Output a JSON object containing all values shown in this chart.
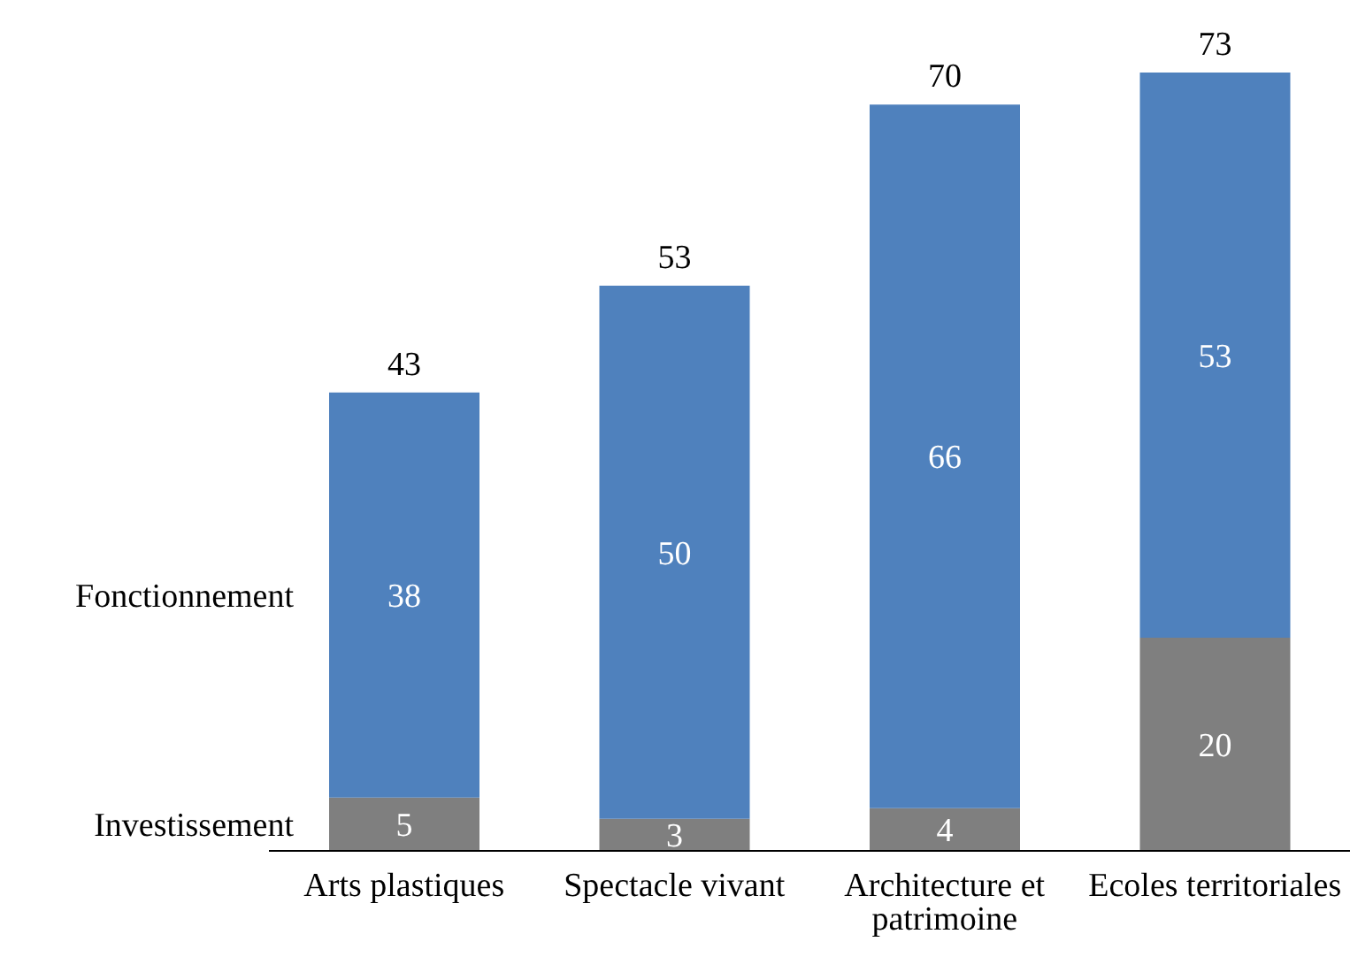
{
  "chart_data": {
    "type": "bar",
    "stacked": true,
    "data_labels": true,
    "categories": [
      "Arts plastiques",
      "Spectacle vivant",
      "Architecture et patrimoine",
      "Ecoles territoriales"
    ],
    "series": [
      {
        "name": "Investissement",
        "color": "#7f7f7f",
        "values": [
          5,
          3,
          4,
          20
        ]
      },
      {
        "name": "Fonctionnement",
        "color": "#4f81bd",
        "values": [
          38,
          50,
          66,
          53
        ]
      }
    ],
    "totals": [
      "43",
      "53",
      "70",
      "73"
    ]
  }
}
